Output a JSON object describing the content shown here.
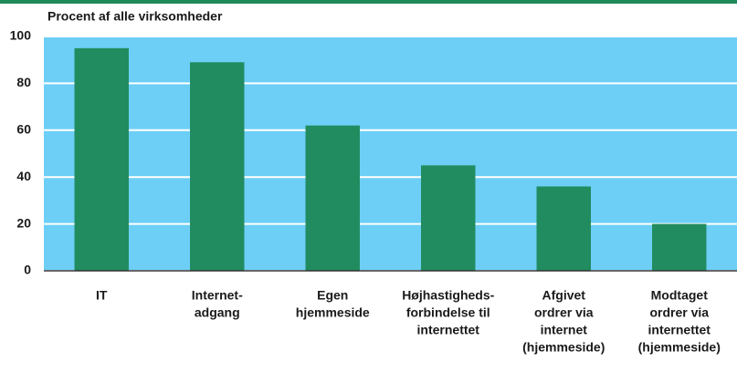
{
  "chart_data": {
    "type": "bar",
    "title": "Procent af alle virksomheder",
    "categories": [
      [
        "IT"
      ],
      [
        "Internet-",
        "adgang"
      ],
      [
        "Egen",
        "hjemmeside"
      ],
      [
        "Højhastigheds-",
        "forbindelse til",
        "internettet"
      ],
      [
        "Afgivet",
        "ordrer via",
        "internet",
        "(hjemmeside)"
      ],
      [
        "Modtaget",
        "ordrer via",
        "internettet",
        "(hjemmeside)"
      ]
    ],
    "values": [
      95,
      89,
      62,
      45,
      36,
      20
    ],
    "color": "#218c5f",
    "background": "#6dcff6",
    "ylim": [
      0,
      100
    ],
    "yticks": [
      0,
      20,
      40,
      60,
      80,
      100
    ],
    "grid": true
  }
}
